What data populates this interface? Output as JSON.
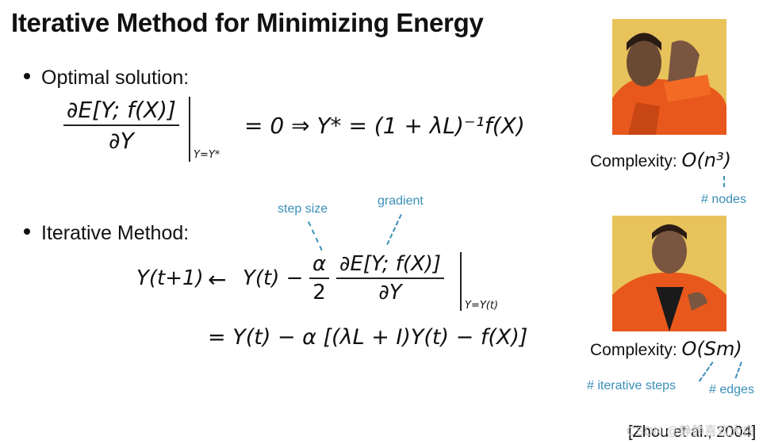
{
  "title": "Iterative Method for Minimizing Energy",
  "bullets": {
    "optimal": "Optimal solution:",
    "iterative": "Iterative Method:"
  },
  "eq1": {
    "numerator": "∂E[Y; f(X)]",
    "denominator": "∂Y",
    "eval_sub": "Y=Y*",
    "rhs": "= 0 ⇒ Y* = (1 + λL)⁻¹f(X)"
  },
  "eq2": {
    "lhs": "Y(t+1)",
    "arrow": "←",
    "term1": "Y(t) −",
    "step_num": "α",
    "step_den": "2",
    "grad_num": "∂E[Y; f(X)]",
    "grad_den": "∂Y",
    "eval_sub": "Y=Y(t)"
  },
  "eq3": {
    "text": "= Y(t) − α [(λL + I)Y(t) − f(X)]"
  },
  "annotations": {
    "step_size": "step size",
    "gradient": "gradient",
    "nodes": "# nodes",
    "iterative_steps": "# iterative steps",
    "edges": "# edges"
  },
  "complexity": {
    "label1": "Complexity:",
    "value1": "O(n³)",
    "label2": "Complexity:",
    "value2": "O(Sm)"
  },
  "citation": "[Zhou et al., 2004]",
  "watermark": "CSDN @静静喜欢大白"
}
